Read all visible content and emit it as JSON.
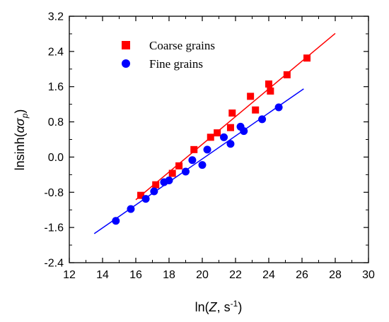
{
  "chart_data": {
    "type": "scatter",
    "xlabel": {
      "base": "ln(",
      "italic": "Z",
      "rest": ", s",
      "sup": "-1",
      "close": ")"
    },
    "ylabel": {
      "base": "lnsinh(",
      "italic": "ασ",
      "sub": "p",
      "close": ")"
    },
    "xlim": [
      12,
      30
    ],
    "ylim": [
      -2.4,
      3.2
    ],
    "x_ticks": [
      "12",
      "14",
      "16",
      "18",
      "20",
      "22",
      "24",
      "26",
      "28",
      "30"
    ],
    "y_ticks": [
      "-2.4",
      "-1.6",
      "-0.8",
      "0.0",
      "0.8",
      "1.6",
      "2.4",
      "3.2"
    ],
    "legend_position": "top-left",
    "grid": false,
    "series": [
      {
        "name": "Coarse grains",
        "marker": "square",
        "color": "#ff0000",
        "points": [
          [
            16.3,
            -0.87
          ],
          [
            17.2,
            -0.63
          ],
          [
            18.2,
            -0.37
          ],
          [
            18.6,
            -0.2
          ],
          [
            19.5,
            0.17
          ],
          [
            20.5,
            0.45
          ],
          [
            20.9,
            0.55
          ],
          [
            21.7,
            0.67
          ],
          [
            21.8,
            1.0
          ],
          [
            22.9,
            1.38
          ],
          [
            23.2,
            1.07
          ],
          [
            24.0,
            1.66
          ],
          [
            24.1,
            1.5
          ],
          [
            25.1,
            1.87
          ],
          [
            26.3,
            2.25
          ]
        ],
        "fit_line": {
          "x": [
            16.0,
            28.0
          ],
          "y": [
            -0.97,
            2.81
          ]
        }
      },
      {
        "name": "Fine grains",
        "marker": "circle",
        "color": "#0000ff",
        "points": [
          [
            14.8,
            -1.45
          ],
          [
            15.7,
            -1.18
          ],
          [
            16.6,
            -0.95
          ],
          [
            17.1,
            -0.78
          ],
          [
            17.7,
            -0.57
          ],
          [
            18.0,
            -0.53
          ],
          [
            19.0,
            -0.33
          ],
          [
            19.4,
            -0.07
          ],
          [
            20.0,
            -0.18
          ],
          [
            20.3,
            0.17
          ],
          [
            21.3,
            0.45
          ],
          [
            21.7,
            0.3
          ],
          [
            22.3,
            0.69
          ],
          [
            22.5,
            0.59
          ],
          [
            23.6,
            0.86
          ],
          [
            24.6,
            1.13
          ]
        ],
        "fit_line": {
          "x": [
            13.5,
            26.1
          ],
          "y": [
            -1.74,
            1.55
          ]
        }
      }
    ]
  }
}
